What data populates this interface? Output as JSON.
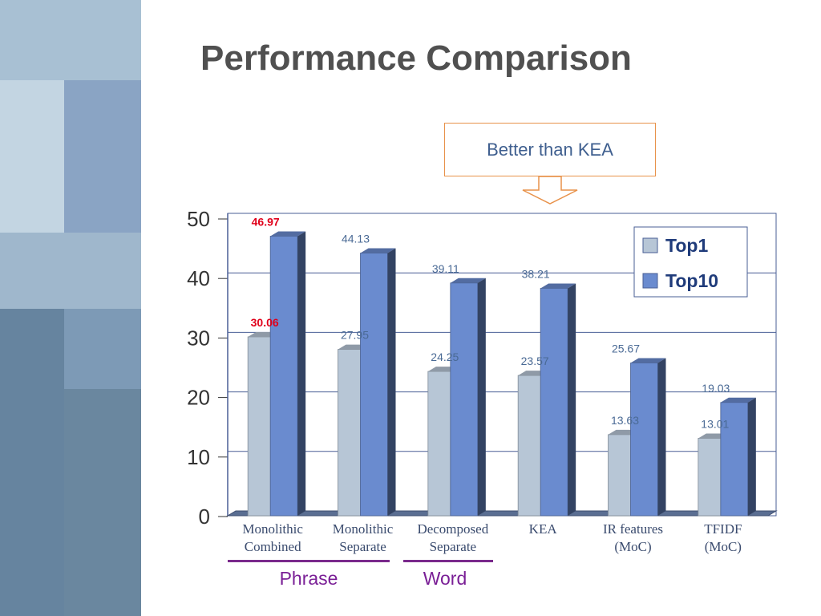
{
  "slide": {
    "title": "Performance Comparison",
    "callout": "Better than KEA",
    "groups": [
      {
        "label": "Phrase"
      },
      {
        "label": "Word"
      }
    ]
  },
  "chart_data": {
    "type": "bar",
    "categories": [
      "Monolithic Combined",
      "Monolithic Separate",
      "Decomposed Separate",
      "KEA",
      "IR features (MoC)",
      "TFIDF (MoC)"
    ],
    "category_lines": [
      [
        "Monolithic",
        "Combined"
      ],
      [
        "Monolithic",
        "Separate"
      ],
      [
        "Decomposed",
        "Separate"
      ],
      [
        "KEA",
        ""
      ],
      [
        "IR features",
        "(MoC)"
      ],
      [
        "TFIDF",
        "(MoC)"
      ]
    ],
    "series": [
      {
        "name": "Top1",
        "values": [
          30.06,
          27.95,
          24.25,
          23.57,
          13.63,
          13.01
        ],
        "color": "#b7c6d6"
      },
      {
        "name": "Top10",
        "values": [
          46.97,
          44.13,
          39.11,
          38.21,
          25.67,
          19.03
        ],
        "color": "#6a8bcf"
      }
    ],
    "value_labels": {
      "Top1": [
        "30.06",
        "27.95",
        "24.25",
        "23.57",
        "13.63",
        "13.01"
      ],
      "Top10": [
        "46.97",
        "44.13",
        "39.11",
        "38.21",
        "25.67",
        "19.03"
      ]
    },
    "highlight_category": "Monolithic Combined",
    "highlight_color": "#e0001a",
    "label_color": "#4a6a95",
    "ylim": [
      0,
      50
    ],
    "yticks": [
      "0",
      "10",
      "20",
      "30",
      "40",
      "50"
    ],
    "grid": true,
    "legend_position": "top-right",
    "title": "",
    "xlabel": "",
    "ylabel": ""
  },
  "colors": {
    "title": "#505050",
    "callout_border": "#e8924a",
    "callout_text": "#3f5f8f",
    "group_line": "#7a2a8c",
    "group_text": "#7a1f96"
  }
}
